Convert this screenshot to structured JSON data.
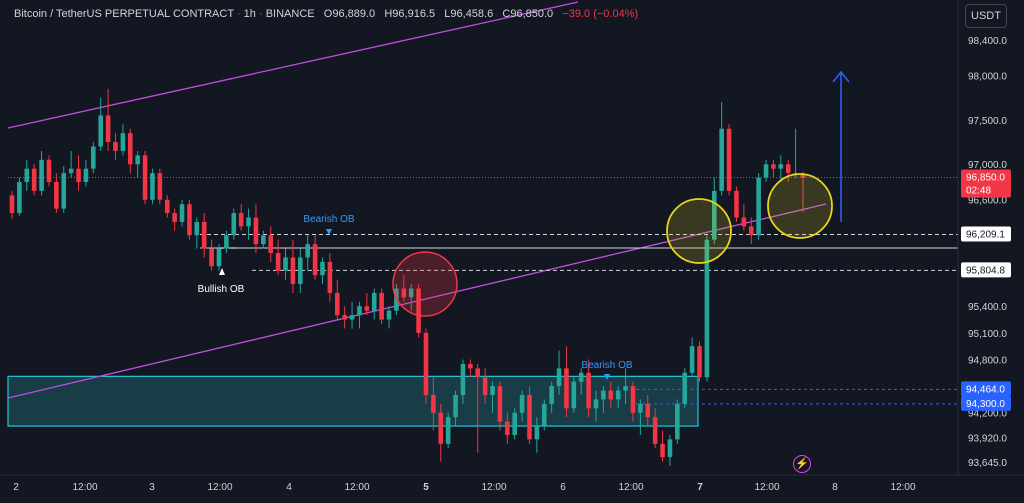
{
  "header": {
    "symbol": "Bitcoin / TetherUS PERPETUAL CONTRACT",
    "interval": "1h",
    "exchange": "BINANCE",
    "open": "O96,889.0",
    "high": "H96,916.5",
    "low": "L96,458.6",
    "close": "C96,850.0",
    "change": "−39.0 (−0.04%)"
  },
  "currency": "USDT",
  "colors": {
    "background": "#131722",
    "up": "#26a69a",
    "down": "#f23645",
    "zone_fill": "#1f5c66",
    "zone_border": "#22c4d8",
    "channel": "#c04ee0",
    "circle_red": "#f23645",
    "circle_yellow": "#e6d61a",
    "arrow": "#2962ff",
    "ob_label": "#2e9bff",
    "axis_text": "#d1d4dc",
    "price_badge_red": "#f23645",
    "price_badge_blue": "#2962ff"
  },
  "chart_data": {
    "type": "candlestick",
    "y_ticks": [
      "98,400.0",
      "98,000.0",
      "97,500.0",
      "97,000.0",
      "96,600.0",
      "95,400.0",
      "95,100.0",
      "94,800.0",
      "94,200.0",
      "93,920.0",
      "93,645.0"
    ],
    "x_ticks": [
      "2",
      "12:00",
      "3",
      "12:00",
      "4",
      "12:00",
      "5",
      "12:00",
      "6",
      "12:00",
      "7",
      "12:00",
      "8",
      "12:00"
    ],
    "candles": [
      [
        96650,
        96700,
        96380,
        96450
      ],
      [
        96450,
        96850,
        96420,
        96800
      ],
      [
        96800,
        97050,
        96700,
        96950
      ],
      [
        96950,
        97000,
        96650,
        96700
      ],
      [
        96700,
        97150,
        96650,
        97050
      ],
      [
        97050,
        97100,
        96750,
        96800
      ],
      [
        96800,
        96900,
        96450,
        96500
      ],
      [
        96500,
        96980,
        96450,
        96900
      ],
      [
        96900,
        97150,
        96850,
        96950
      ],
      [
        96950,
        97100,
        96700,
        96800
      ],
      [
        96800,
        97050,
        96750,
        96950
      ],
      [
        96950,
        97250,
        96900,
        97200
      ],
      [
        97200,
        97750,
        97150,
        97550
      ],
      [
        97550,
        97850,
        97150,
        97250
      ],
      [
        97250,
        97350,
        97050,
        97150
      ],
      [
        97150,
        97450,
        97100,
        97350
      ],
      [
        97350,
        97400,
        96900,
        97000
      ],
      [
        97000,
        97150,
        96850,
        97100
      ],
      [
        97100,
        97150,
        96550,
        96600
      ],
      [
        96600,
        96950,
        96550,
        96900
      ],
      [
        96900,
        96950,
        96550,
        96600
      ],
      [
        96600,
        96650,
        96400,
        96450
      ],
      [
        96450,
        96500,
        96250,
        96350
      ],
      [
        96350,
        96600,
        96300,
        96550
      ],
      [
        96550,
        96600,
        96150,
        96200
      ],
      [
        96200,
        96400,
        96050,
        96350
      ],
      [
        96350,
        96450,
        95950,
        96050
      ],
      [
        96050,
        96150,
        95800,
        95850
      ],
      [
        95850,
        96100,
        95800,
        96050
      ],
      [
        96050,
        96250,
        96000,
        96200
      ],
      [
        96200,
        96500,
        96150,
        96450
      ],
      [
        96450,
        96550,
        96250,
        96300
      ],
      [
        96300,
        96500,
        96150,
        96400
      ],
      [
        96400,
        96550,
        96000,
        96100
      ],
      [
        96100,
        96250,
        96050,
        96200
      ],
      [
        96200,
        96300,
        95900,
        96000
      ],
      [
        96000,
        96150,
        95750,
        95800
      ],
      [
        95800,
        96050,
        95700,
        95950
      ],
      [
        95950,
        96150,
        95550,
        95650
      ],
      [
        95650,
        96050,
        95550,
        95950
      ],
      [
        95950,
        96200,
        95800,
        96100
      ],
      [
        96100,
        96200,
        95700,
        95750
      ],
      [
        95750,
        95950,
        95650,
        95900
      ],
      [
        95900,
        96000,
        95450,
        95550
      ],
      [
        95550,
        95700,
        95250,
        95300
      ],
      [
        95300,
        95400,
        95150,
        95250
      ],
      [
        95250,
        95450,
        95150,
        95300
      ],
      [
        95300,
        95450,
        95150,
        95400
      ],
      [
        95400,
        95550,
        95300,
        95350
      ],
      [
        95350,
        95600,
        95250,
        95550
      ],
      [
        95550,
        95600,
        95200,
        95250
      ],
      [
        95250,
        95400,
        95150,
        95350
      ],
      [
        95350,
        95650,
        95300,
        95600
      ],
      [
        95600,
        95750,
        95450,
        95500
      ],
      [
        95500,
        95650,
        95350,
        95600
      ],
      [
        95600,
        95650,
        95050,
        95100
      ],
      [
        95100,
        95150,
        94300,
        94400
      ],
      [
        94400,
        94600,
        94000,
        94200
      ],
      [
        94200,
        94300,
        93650,
        93850
      ],
      [
        93850,
        94200,
        93800,
        94150
      ],
      [
        94150,
        94450,
        94050,
        94400
      ],
      [
        94400,
        94800,
        94300,
        94750
      ],
      [
        94750,
        94800,
        94600,
        94700
      ],
      [
        94700,
        94750,
        93750,
        94600
      ],
      [
        94600,
        94700,
        94300,
        94400
      ],
      [
        94400,
        94550,
        94200,
        94500
      ],
      [
        94500,
        94550,
        94000,
        94100
      ],
      [
        94100,
        94200,
        93850,
        93950
      ],
      [
        93950,
        94250,
        93900,
        94200
      ],
      [
        94200,
        94450,
        94100,
        94400
      ],
      [
        94400,
        94500,
        93850,
        93900
      ],
      [
        93900,
        94150,
        93750,
        94050
      ],
      [
        94050,
        94350,
        94000,
        94300
      ],
      [
        94300,
        94550,
        94200,
        94500
      ],
      [
        94500,
        94900,
        94400,
        94700
      ],
      [
        94700,
        94950,
        94150,
        94250
      ],
      [
        94250,
        94600,
        94200,
        94550
      ],
      [
        94550,
        94700,
        94400,
        94650
      ],
      [
        94650,
        94800,
        94150,
        94250
      ],
      [
        94250,
        94450,
        94100,
        94350
      ],
      [
        94350,
        94500,
        94200,
        94450
      ],
      [
        94450,
        94550,
        94250,
        94350
      ],
      [
        94350,
        94500,
        94250,
        94450
      ],
      [
        94450,
        94700,
        94300,
        94500
      ],
      [
        94500,
        94550,
        94100,
        94200
      ],
      [
        94200,
        94350,
        93950,
        94300
      ],
      [
        94300,
        94400,
        94050,
        94150
      ],
      [
        94150,
        94250,
        93800,
        93850
      ],
      [
        93850,
        94000,
        93650,
        93700
      ],
      [
        93700,
        93950,
        93600,
        93900
      ],
      [
        93900,
        94350,
        93850,
        94300
      ],
      [
        94300,
        94700,
        94250,
        94650
      ],
      [
        94650,
        95050,
        94600,
        94950
      ],
      [
        94950,
        95000,
        94550,
        94600
      ],
      [
        94600,
        96200,
        94550,
        96150
      ],
      [
        96150,
        96850,
        96100,
        96700
      ],
      [
        96700,
        97700,
        96650,
        97400
      ],
      [
        97400,
        97450,
        96650,
        96700
      ],
      [
        96700,
        96750,
        96350,
        96400
      ],
      [
        96400,
        96550,
        96250,
        96300
      ],
      [
        96300,
        96400,
        96100,
        96200
      ],
      [
        96200,
        96900,
        96150,
        96850
      ],
      [
        96850,
        97050,
        96800,
        97000
      ],
      [
        97000,
        97050,
        96850,
        96950
      ],
      [
        96950,
        97100,
        96800,
        97000
      ],
      [
        97000,
        97050,
        96800,
        96900
      ],
      [
        96900,
        97400,
        96850,
        96900
      ],
      [
        96889,
        96916.5,
        96458.6,
        96850
      ]
    ]
  },
  "annotations": {
    "bullish_ob": "Bullish OB",
    "bearish_ob_1": "Bearish OB",
    "bearish_ob_2": "Bearish OB"
  },
  "price_badges": {
    "last": "96,850.0",
    "countdown": "02:48",
    "level1": "96,209.1",
    "level2": "95,804.8",
    "level3": "94,464.0",
    "level4": "94,300.0"
  }
}
